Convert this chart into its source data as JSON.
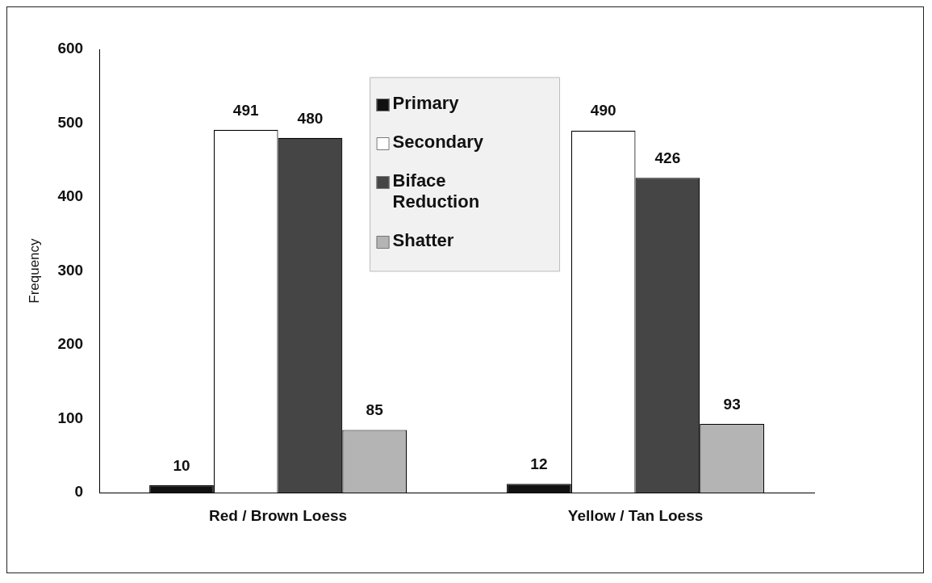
{
  "chart_data": {
    "type": "bar",
    "ylabel": "Frequency",
    "categories": [
      "Red / Brown Loess",
      "Yellow / Tan Loess"
    ],
    "series": [
      {
        "name": "Primary",
        "color": "#111111",
        "values": [
          10,
          12
        ]
      },
      {
        "name": "Secondary",
        "color": "#ffffff",
        "values": [
          491,
          490
        ]
      },
      {
        "name": "Biface Reduction",
        "color": "#454545",
        "values": [
          480,
          426
        ]
      },
      {
        "name": "Shatter",
        "color": "#b4b4b4",
        "values": [
          85,
          93
        ]
      }
    ],
    "ylim": [
      0,
      600
    ],
    "yticks": [
      0,
      100,
      200,
      300,
      400,
      500,
      600
    ],
    "grid": false,
    "legend": "top",
    "data_labels": true
  }
}
